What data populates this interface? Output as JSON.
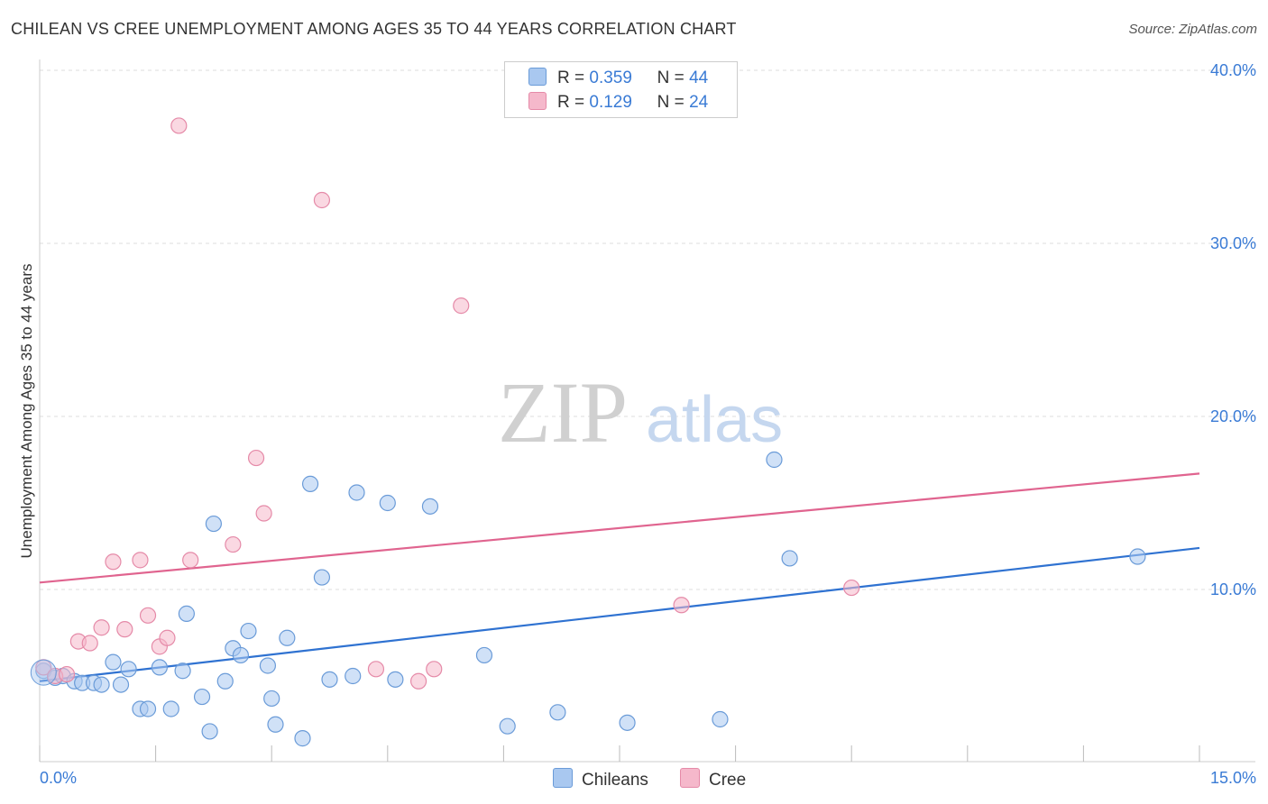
{
  "header": {
    "title": "CHILEAN VS CREE UNEMPLOYMENT AMONG AGES 35 TO 44 YEARS CORRELATION CHART",
    "source": "Source: ZipAtlas.com"
  },
  "watermark": {
    "zip": "ZIP",
    "atlas": "atlas"
  },
  "legend": {
    "rows": [
      {
        "r_label": "R =",
        "r_value": "0.359",
        "n_label": "N =",
        "n_value": "44",
        "color": "#a9c8f0"
      },
      {
        "r_label": "R =",
        "r_value": "0.129",
        "n_label": "N =",
        "n_value": "24",
        "color": "#f5b8cb"
      }
    ]
  },
  "colors": {
    "chileans_fill": "#a9c8f0",
    "chileans_stroke": "#6a9bd8",
    "chileans_line": "#2f72d1",
    "cree_fill": "#f5b8cb",
    "cree_stroke": "#e58aa8",
    "cree_line": "#e0648f"
  },
  "chart_data": {
    "type": "scatter",
    "title": "CHILEAN VS CREE UNEMPLOYMENT AMONG AGES 35 TO 44 YEARS CORRELATION CHART",
    "xlabel": "",
    "ylabel": "Unemployment Among Ages 35 to 44 years",
    "xlim": [
      0,
      15
    ],
    "ylim": [
      0,
      41
    ],
    "x_tick_labels": [
      "0.0%",
      "15.0%"
    ],
    "y_ticks": [
      10,
      20,
      30,
      40
    ],
    "y_tick_labels": [
      "10.0%",
      "20.0%",
      "30.0%",
      "40.0%"
    ],
    "grid": true,
    "legend_position": "top-center",
    "series": [
      {
        "name": "Chileans",
        "r": 0.359,
        "n": 44,
        "trend": {
          "x": [
            0,
            15
          ],
          "y": [
            4.7,
            12.4
          ]
        },
        "points": [
          [
            0.05,
            5.3
          ],
          [
            0.2,
            4.9
          ],
          [
            0.3,
            5.0
          ],
          [
            0.45,
            4.7
          ],
          [
            0.55,
            4.6
          ],
          [
            0.7,
            4.6
          ],
          [
            0.8,
            4.5
          ],
          [
            0.95,
            5.8
          ],
          [
            1.05,
            4.5
          ],
          [
            1.15,
            5.4
          ],
          [
            1.3,
            3.1
          ],
          [
            1.4,
            3.1
          ],
          [
            1.55,
            5.5
          ],
          [
            1.7,
            3.1
          ],
          [
            1.85,
            5.3
          ],
          [
            1.9,
            8.6
          ],
          [
            2.1,
            3.8
          ],
          [
            2.2,
            1.8
          ],
          [
            2.25,
            13.8
          ],
          [
            2.4,
            4.7
          ],
          [
            2.5,
            6.6
          ],
          [
            2.6,
            6.2
          ],
          [
            2.7,
            7.6
          ],
          [
            2.95,
            5.6
          ],
          [
            3.0,
            3.7
          ],
          [
            3.05,
            2.2
          ],
          [
            3.2,
            7.2
          ],
          [
            3.4,
            1.4
          ],
          [
            3.5,
            16.1
          ],
          [
            3.65,
            10.7
          ],
          [
            3.75,
            4.8
          ],
          [
            4.05,
            5.0
          ],
          [
            4.1,
            15.6
          ],
          [
            4.5,
            15.0
          ],
          [
            4.6,
            4.8
          ],
          [
            5.05,
            14.8
          ],
          [
            5.75,
            6.2
          ],
          [
            6.05,
            2.1
          ],
          [
            6.7,
            2.9
          ],
          [
            7.6,
            2.3
          ],
          [
            8.8,
            2.5
          ],
          [
            9.5,
            17.5
          ],
          [
            9.7,
            11.8
          ],
          [
            14.2,
            11.9
          ]
        ]
      },
      {
        "name": "Cree",
        "r": 0.129,
        "n": 24,
        "trend": {
          "x": [
            0,
            15
          ],
          "y": [
            10.4,
            16.7
          ]
        },
        "points": [
          [
            0.05,
            5.5
          ],
          [
            0.2,
            5.0
          ],
          [
            0.35,
            5.1
          ],
          [
            0.5,
            7.0
          ],
          [
            0.65,
            6.9
          ],
          [
            0.8,
            7.8
          ],
          [
            0.95,
            11.6
          ],
          [
            1.1,
            7.7
          ],
          [
            1.3,
            11.7
          ],
          [
            1.4,
            8.5
          ],
          [
            1.55,
            6.7
          ],
          [
            1.65,
            7.2
          ],
          [
            1.8,
            36.8
          ],
          [
            1.95,
            11.7
          ],
          [
            2.5,
            12.6
          ],
          [
            2.8,
            17.6
          ],
          [
            2.9,
            14.4
          ],
          [
            3.65,
            32.5
          ],
          [
            4.35,
            5.4
          ],
          [
            4.9,
            4.7
          ],
          [
            5.1,
            5.4
          ],
          [
            5.45,
            26.4
          ],
          [
            8.3,
            9.1
          ],
          [
            10.5,
            10.1
          ]
        ]
      }
    ]
  },
  "bottom_legend": {
    "chileans": "Chileans",
    "cree": "Cree"
  }
}
